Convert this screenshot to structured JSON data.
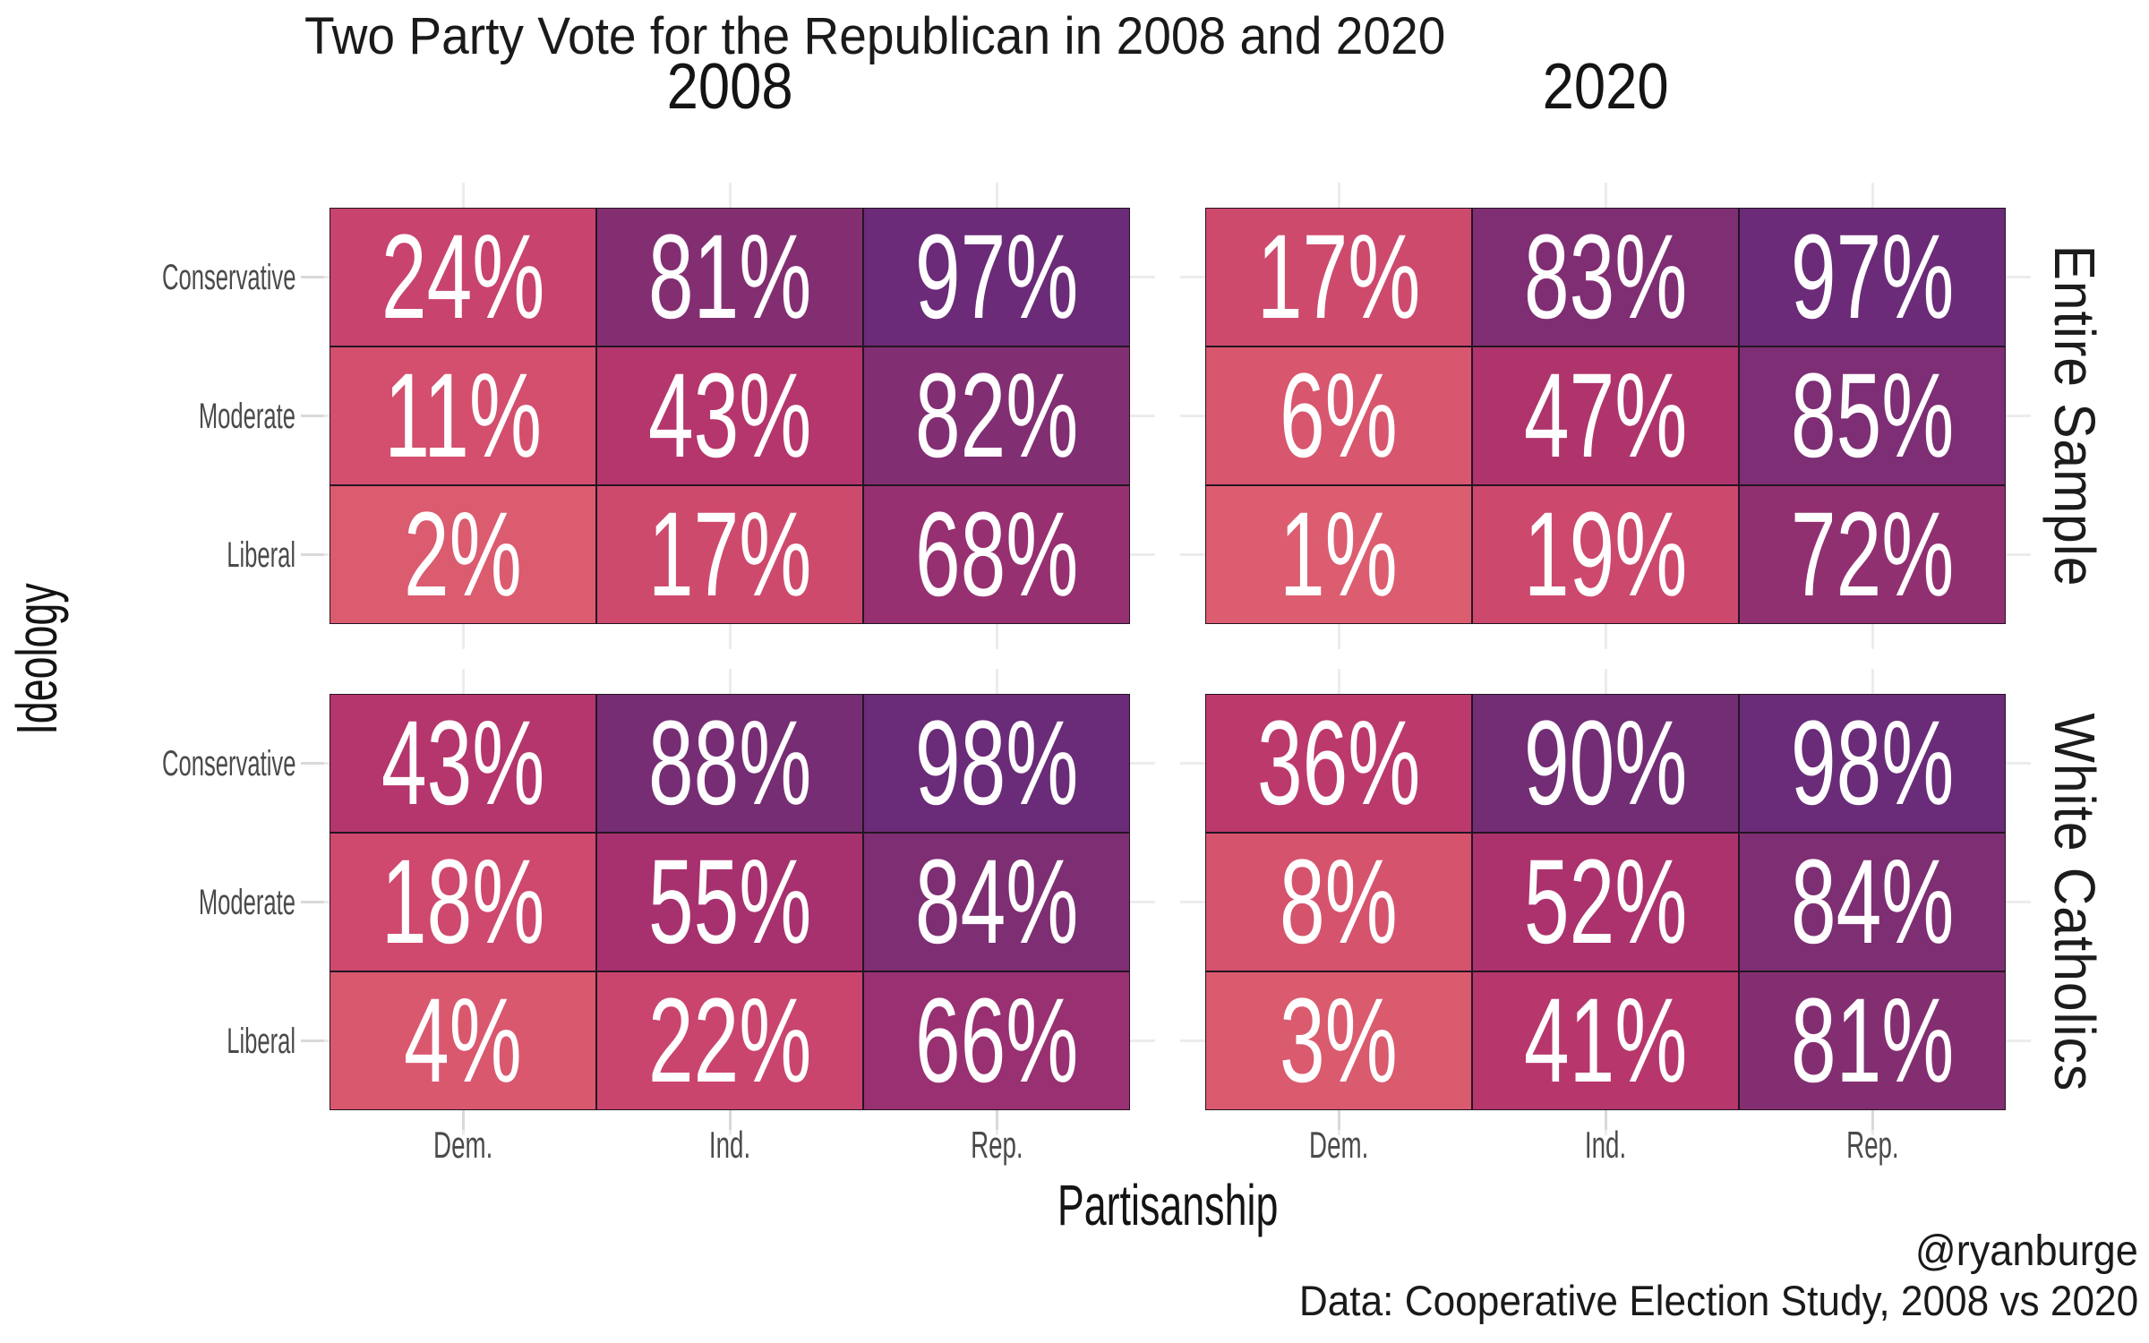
{
  "title": "Two Party Vote for the Republican in 2008 and 2020",
  "facets": {
    "columns": [
      "2008",
      "2020"
    ],
    "rows": [
      "Entire Sample",
      "White Catholics"
    ]
  },
  "axes": {
    "x_title": "Partisanship",
    "y_title": "Ideology",
    "x_ticks": [
      "Dem.",
      "Ind.",
      "Rep."
    ],
    "y_ticks": [
      "Conservative",
      "Moderate",
      "Liberal"
    ]
  },
  "caption": {
    "handle": "@ryanburge",
    "source": "Data: Cooperative Election Study, 2008 vs 2020"
  },
  "value_suffix": "%",
  "colors": {
    "background": "#ffffff",
    "cell_text": "#ffffff",
    "tile_border": "#241523",
    "grid_line": "#ececec",
    "tick_mark": "#d9d9d9",
    "tick_label": "#4a4a4a",
    "text": "#1a1a1a",
    "scale_anchors": [
      [
        0,
        "#DD5E6F"
      ],
      [
        10,
        "#D4506D"
      ],
      [
        20,
        "#CC476D"
      ],
      [
        30,
        "#C23D6C"
      ],
      [
        40,
        "#B8376C"
      ],
      [
        50,
        "#AD326C"
      ],
      [
        60,
        "#A13070"
      ],
      [
        70,
        "#943071"
      ],
      [
        80,
        "#862E72"
      ],
      [
        90,
        "#732D75"
      ],
      [
        100,
        "#682A79"
      ]
    ]
  },
  "chart_data": {
    "type": "heatmap",
    "title": "Two Party Vote for the Republican in 2008 and 2020",
    "x_categories": [
      "Dem.",
      "Ind.",
      "Rep."
    ],
    "y_categories": [
      "Conservative",
      "Moderate",
      "Liberal"
    ],
    "facet_columns": [
      "2008",
      "2020"
    ],
    "facet_rows": [
      "Entire Sample",
      "White Catholics"
    ],
    "unit": "percent",
    "legend": "none",
    "panels": [
      {
        "facet_row": "Entire Sample",
        "facet_col": "2008",
        "values": [
          [
            24,
            81,
            97
          ],
          [
            11,
            43,
            82
          ],
          [
            2,
            17,
            68
          ]
        ]
      },
      {
        "facet_row": "Entire Sample",
        "facet_col": "2020",
        "values": [
          [
            17,
            83,
            97
          ],
          [
            6,
            47,
            85
          ],
          [
            1,
            19,
            72
          ]
        ]
      },
      {
        "facet_row": "White Catholics",
        "facet_col": "2008",
        "values": [
          [
            43,
            88,
            98
          ],
          [
            18,
            55,
            84
          ],
          [
            4,
            22,
            66
          ]
        ]
      },
      {
        "facet_row": "White Catholics",
        "facet_col": "2020",
        "values": [
          [
            36,
            90,
            98
          ],
          [
            8,
            52,
            84
          ],
          [
            3,
            41,
            81
          ]
        ]
      }
    ]
  }
}
